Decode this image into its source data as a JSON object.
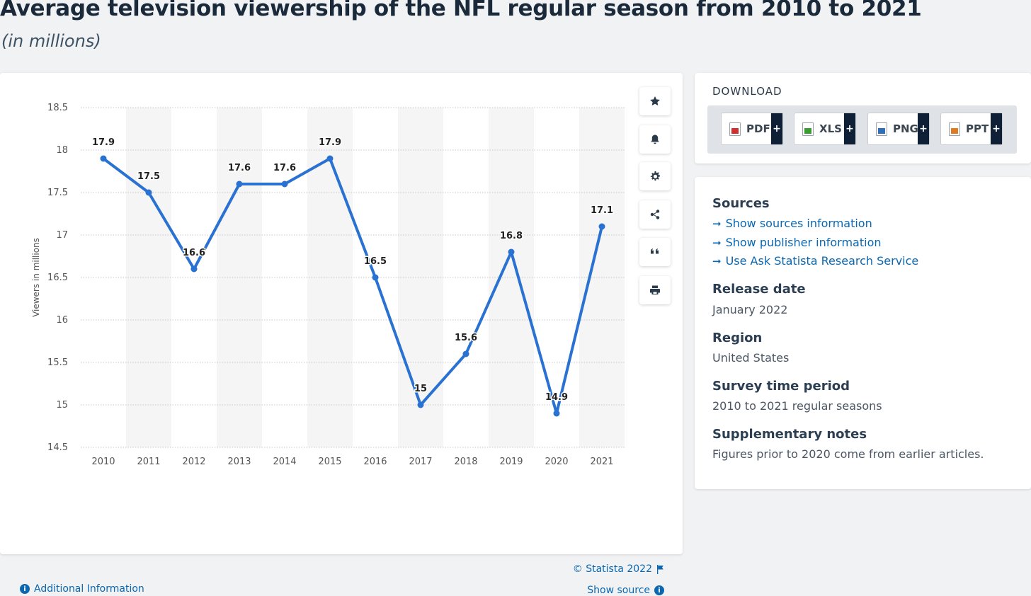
{
  "header": {
    "title": "Average television viewership of the NFL regular season from 2010 to 2021",
    "subtitle": "(in millions)"
  },
  "toolbar": {
    "items": [
      "star-icon",
      "bell-icon",
      "gear-icon",
      "share-icon",
      "quote-icon",
      "print-icon"
    ]
  },
  "chart_footer": {
    "copyright": "© Statista 2022",
    "show_source": "Show source",
    "additional_info": "Additional Information"
  },
  "download": {
    "title": "DOWNLOAD",
    "buttons": [
      {
        "label": "PDF",
        "plus": "+",
        "color": "#d32f2f"
      },
      {
        "label": "XLS",
        "plus": "+",
        "color": "#3a9d2f"
      },
      {
        "label": "PNG",
        "plus": "+",
        "color": "#2f6fb8"
      },
      {
        "label": "PPT",
        "plus": "+",
        "color": "#e07b20"
      }
    ]
  },
  "sidebar": {
    "sources_heading": "Sources",
    "links": [
      "Show sources information",
      "Show publisher information",
      "Use Ask Statista Research Service"
    ],
    "release_heading": "Release date",
    "release_value": "January 2022",
    "region_heading": "Region",
    "region_value": "United States",
    "survey_heading": "Survey time period",
    "survey_value": "2010 to 2021 regular seasons",
    "notes_heading": "Supplementary notes",
    "notes_value": "Figures prior to 2020 come from earlier articles."
  },
  "colors": {
    "line": "#2a72d2",
    "link": "#0b67b0",
    "band": "#f5f5f5"
  },
  "chart_data": {
    "type": "line",
    "title": "Average television viewership of the NFL regular season from 2010 to 2021",
    "subtitle": "(in millions)",
    "xlabel": "",
    "ylabel": "Viewers in millions",
    "categories": [
      "2010",
      "2011",
      "2012",
      "2013",
      "2014",
      "2015",
      "2016",
      "2017",
      "2018",
      "2019",
      "2020",
      "2021"
    ],
    "values": [
      17.9,
      17.5,
      16.6,
      17.6,
      17.6,
      17.9,
      16.5,
      15,
      15.6,
      16.8,
      14.9,
      17.1
    ],
    "data_labels": [
      "17.9",
      "17.5",
      "16.6",
      "17.6",
      "17.6",
      "17.9",
      "16.5",
      "15",
      "15.6",
      "16.8",
      "14.9",
      "17.1"
    ],
    "ylim": [
      14.5,
      18.5
    ],
    "yticks": [
      "14.5",
      "15",
      "15.5",
      "16",
      "16.5",
      "17",
      "17.5",
      "18",
      "18.5"
    ],
    "grid": true,
    "legend": "none"
  }
}
